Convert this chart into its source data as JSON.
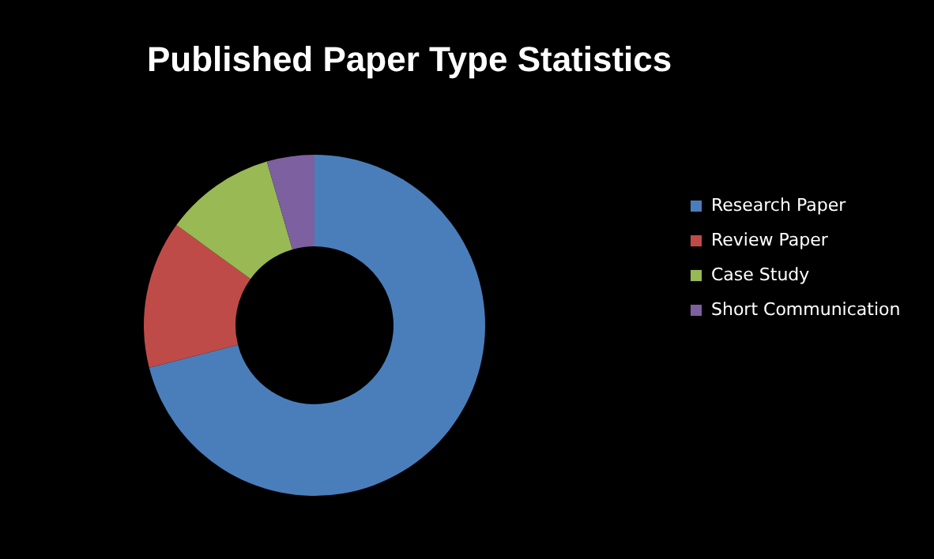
{
  "chart_data": {
    "type": "donut",
    "title": "Published Paper Type Statistics",
    "categories": [
      "Research Paper",
      "Review Paper",
      "Case Study",
      "Short Communication"
    ],
    "values": [
      71,
      14,
      10.5,
      4.5
    ],
    "colors": [
      "#4a7ebb",
      "#be4b48",
      "#98b954",
      "#7d60a0"
    ],
    "legend": "right"
  }
}
